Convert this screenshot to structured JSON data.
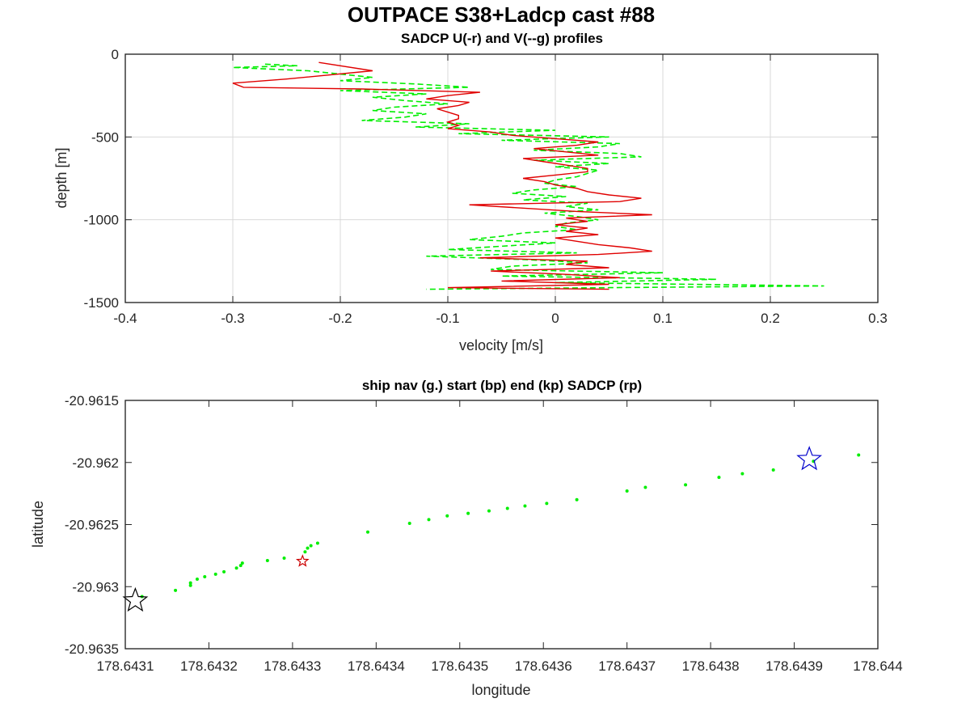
{
  "figure": {
    "title": "OUTPACE S38+Ladcp cast #88"
  },
  "chart_data": [
    {
      "type": "line",
      "title": "SADCP U(-r) and V(--g) profiles",
      "xlabel": "velocity [m/s]",
      "ylabel": "depth [m]",
      "xlim": [
        -0.4,
        0.3
      ],
      "ylim": [
        -1500,
        0
      ],
      "xticks": [
        -0.4,
        -0.3,
        -0.2,
        -0.1,
        0,
        0.1,
        0.2,
        0.3
      ],
      "xtick_labels": [
        "-0.4",
        "-0.3",
        "-0.2",
        "-0.1",
        "0",
        "0.1",
        "0.2",
        "0.3"
      ],
      "yticks": [
        0,
        -500,
        -1000,
        -1500
      ],
      "ytick_labels": [
        "0",
        "-500",
        "-1000",
        "-1500"
      ],
      "grid": true,
      "series": [
        {
          "name": "U",
          "color": "#e00000",
          "style": "solid",
          "depth": [
            -50,
            -100,
            -150,
            -175,
            -200,
            -210,
            -230,
            -250,
            -270,
            -290,
            -310,
            -330,
            -350,
            -370,
            -390,
            -410,
            -430,
            -450,
            -470,
            -490,
            -510,
            -530,
            -550,
            -570,
            -590,
            -610,
            -630,
            -650,
            -670,
            -690,
            -710,
            -730,
            -750,
            -770,
            -790,
            -810,
            -830,
            -850,
            -870,
            -890,
            -910,
            -930,
            -950,
            -970,
            -990,
            -1010,
            -1030,
            -1050,
            -1070,
            -1090,
            -1110,
            -1130,
            -1150,
            -1170,
            -1190,
            -1210,
            -1230,
            -1250,
            -1270,
            -1290,
            -1310,
            -1330,
            -1350,
            -1370,
            -1390,
            -1410,
            -1420
          ],
          "values": [
            -0.22,
            -0.17,
            -0.25,
            -0.3,
            -0.29,
            -0.18,
            -0.07,
            -0.1,
            -0.12,
            -0.08,
            -0.09,
            -0.11,
            -0.1,
            -0.09,
            -0.09,
            -0.1,
            -0.09,
            -0.1,
            -0.06,
            -0.04,
            0.0,
            0.04,
            0.02,
            -0.02,
            0.01,
            0.04,
            -0.03,
            -0.01,
            0.01,
            0.03,
            0.03,
            0.0,
            -0.03,
            -0.01,
            0.0,
            0.02,
            0.03,
            0.05,
            0.08,
            0.06,
            -0.08,
            -0.03,
            0.02,
            0.09,
            0.01,
            0.03,
            0.0,
            0.03,
            0.01,
            0.04,
            0.0,
            0.02,
            0.04,
            0.07,
            0.09,
            0.04,
            -0.07,
            0.03,
            0.01,
            0.05,
            -0.06,
            0.01,
            0.06,
            -0.05,
            0.05,
            -0.1,
            0.05
          ]
        },
        {
          "name": "V",
          "color": "#00ee00",
          "style": "dashed",
          "depth": [
            -60,
            -70,
            -80,
            -100,
            -120,
            -140,
            -160,
            -180,
            -200,
            -220,
            -240,
            -260,
            -280,
            -300,
            -320,
            -340,
            -360,
            -380,
            -400,
            -420,
            -440,
            -460,
            -480,
            -500,
            -520,
            -540,
            -560,
            -580,
            -600,
            -620,
            -640,
            -660,
            -680,
            -700,
            -720,
            -740,
            -760,
            -780,
            -800,
            -820,
            -840,
            -860,
            -880,
            -900,
            -920,
            -940,
            -960,
            -980,
            -1000,
            -1020,
            -1040,
            -1060,
            -1080,
            -1100,
            -1120,
            -1140,
            -1160,
            -1180,
            -1200,
            -1220,
            -1240,
            -1260,
            -1280,
            -1300,
            -1320,
            -1340,
            -1360,
            -1380,
            -1400,
            -1410,
            -1420
          ],
          "values": [
            -0.27,
            -0.24,
            -0.3,
            -0.23,
            -0.2,
            -0.17,
            -0.2,
            -0.13,
            -0.08,
            -0.2,
            -0.12,
            -0.17,
            -0.14,
            -0.1,
            -0.15,
            -0.17,
            -0.12,
            -0.14,
            -0.18,
            -0.08,
            -0.13,
            0.0,
            -0.09,
            0.05,
            -0.05,
            0.06,
            0.04,
            -0.02,
            0.06,
            0.08,
            -0.02,
            0.05,
            0.0,
            0.04,
            0.03,
            0.02,
            0.0,
            -0.01,
            0.02,
            -0.02,
            -0.04,
            0.01,
            -0.03,
            0.03,
            0.01,
            0.04,
            -0.01,
            0.02,
            0.04,
            0.01,
            0.0,
            0.02,
            -0.03,
            -0.05,
            -0.08,
            0.0,
            -0.05,
            -0.1,
            0.02,
            -0.12,
            -0.03,
            0.03,
            -0.04,
            -0.06,
            0.1,
            -0.05,
            0.15,
            0.0,
            0.25,
            0.05,
            -0.12
          ]
        }
      ]
    },
    {
      "type": "scatter",
      "title": "ship nav (g.) start (bp) end (kp) SADCP (rp)",
      "xlabel": "longitude",
      "ylabel": "latitude",
      "xlim": [
        178.6431,
        178.644
      ],
      "ylim": [
        -20.9635,
        -20.9615
      ],
      "xticks": [
        178.6431,
        178.6432,
        178.6433,
        178.6434,
        178.6435,
        178.6436,
        178.6437,
        178.6438,
        178.6439,
        178.644
      ],
      "xtick_labels": [
        "178.6431",
        "178.6432",
        "178.6433",
        "178.6434",
        "178.6435",
        "178.6436",
        "178.6437",
        "178.6438",
        "178.6439",
        "178.644"
      ],
      "yticks": [
        -20.9615,
        -20.962,
        -20.9625,
        -20.963,
        -20.9635
      ],
      "ytick_labels": [
        "-20.9615",
        "-20.962",
        "-20.9625",
        "-20.963",
        "-20.9635"
      ],
      "grid": false,
      "ship_nav": {
        "color": "#00ee00",
        "lon": [
          178.64312,
          178.64316,
          178.643178,
          178.643178,
          178.643186,
          178.643195,
          178.643208,
          178.643218,
          178.643233,
          178.643238,
          178.64324,
          178.64327,
          178.64329,
          178.643315,
          178.643318,
          178.643322,
          178.64333,
          178.64339,
          178.64344,
          178.643463,
          178.643485,
          178.64351,
          178.643535,
          178.643557,
          178.643578,
          178.643604,
          178.64364,
          178.6437,
          178.643722,
          178.64377,
          178.64381,
          178.643838,
          178.643875,
          178.643923,
          178.643977
        ],
        "lat": [
          -20.96308,
          -20.96303,
          -20.96299,
          -20.96297,
          -20.96294,
          -20.96292,
          -20.9629,
          -20.96288,
          -20.96285,
          -20.96283,
          -20.96281,
          -20.96279,
          -20.96277,
          -20.96272,
          -20.96269,
          -20.96267,
          -20.96265,
          -20.96256,
          -20.96249,
          -20.96246,
          -20.96243,
          -20.96241,
          -20.96239,
          -20.96237,
          -20.96235,
          -20.96233,
          -20.9623,
          -20.96223,
          -20.9622,
          -20.96218,
          -20.96212,
          -20.96209,
          -20.96206,
          -20.96199,
          -20.96194
        ]
      },
      "start": {
        "color": "#0000cc",
        "lon": 178.643918,
        "lat": -20.961975
      },
      "end": {
        "color": "#000000",
        "lon": 178.643112,
        "lat": -20.963113
      },
      "sadcp": {
        "color": "#cc0000",
        "lon": 178.643312,
        "lat": -20.962795
      }
    }
  ]
}
